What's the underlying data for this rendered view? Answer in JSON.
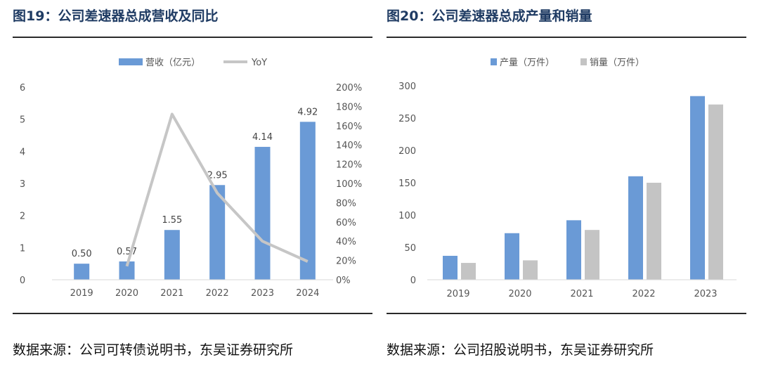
{
  "figures": [
    {
      "title": "图19：公司差速器总成营收及同比",
      "source": "数据来源：公司可转债说明书，东吴证券研究所"
    },
    {
      "title": "图20：公司差速器总成产量和销量",
      "source": "数据来源：公司招股说明书，东吴证券研究所"
    }
  ],
  "chart_data": [
    {
      "type": "bar",
      "categories": [
        "2019",
        "2020",
        "2021",
        "2022",
        "2023",
        "2024"
      ],
      "series": [
        {
          "name": "营收（亿元）",
          "type": "bar",
          "axis": "left",
          "color": "#6a9ad6",
          "values": [
            0.5,
            0.57,
            1.55,
            2.95,
            4.14,
            4.92
          ],
          "labels": [
            "0.50",
            "0.57",
            "1.55",
            "2.95",
            "4.14",
            "4.92"
          ]
        },
        {
          "name": "YoY",
          "type": "line",
          "axis": "right",
          "color": "#c6c6c6",
          "values": [
            null,
            14,
            172,
            90,
            40,
            19
          ]
        }
      ],
      "ylim": [
        0,
        6
      ],
      "yticks": [
        "0",
        "1",
        "2",
        "3",
        "4",
        "5",
        "6"
      ],
      "y2lim": [
        0,
        200
      ],
      "y2ticks": [
        "0%",
        "20%",
        "40%",
        "60%",
        "80%",
        "100%",
        "120%",
        "140%",
        "160%",
        "180%",
        "200%"
      ],
      "legend_position": "top",
      "grid": false
    },
    {
      "type": "bar",
      "categories": [
        "2019",
        "2020",
        "2021",
        "2022",
        "2023"
      ],
      "series": [
        {
          "name": "产量（万件）",
          "color": "#6a9ad6",
          "values": [
            37,
            72,
            92,
            160,
            284
          ]
        },
        {
          "name": "销量（万件）",
          "color": "#c4c4c4",
          "values": [
            26,
            30,
            77,
            150,
            271
          ]
        }
      ],
      "ylim": [
        0,
        300
      ],
      "yticks": [
        "0",
        "50",
        "100",
        "150",
        "200",
        "250",
        "300"
      ],
      "legend_position": "top",
      "grid": false
    }
  ]
}
